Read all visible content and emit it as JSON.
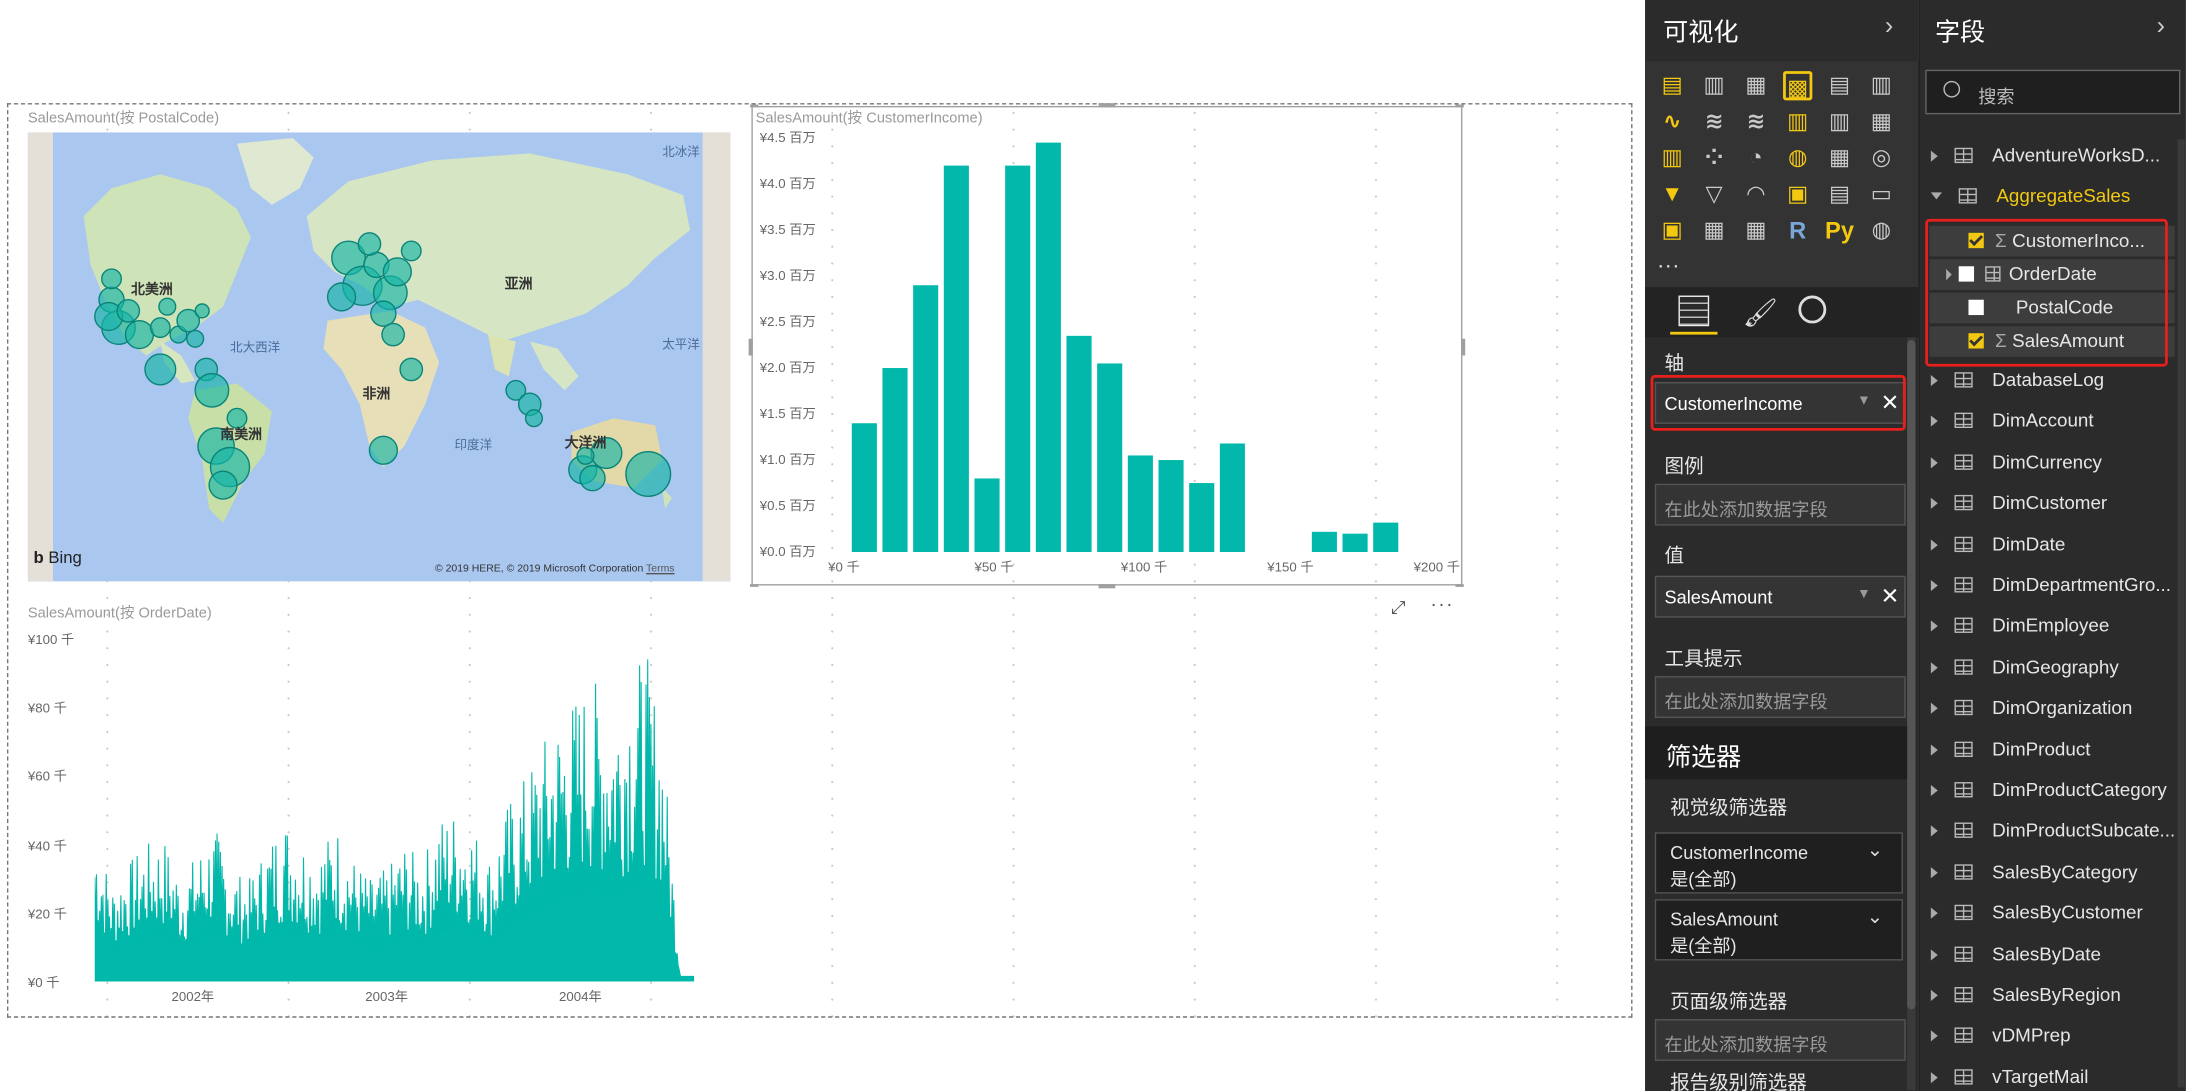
{
  "visuals": {
    "map": {
      "title": "SalesAmount(按 PostalCode)",
      "labels": {
        "north_america": "北美洲",
        "asia": "亚洲",
        "north_atlantic": "北大西洋",
        "africa": "非洲",
        "south_america": "南美洲",
        "indian_ocean": "印度洋",
        "oceania": "大洋洲",
        "pacific": "太平洋",
        "arctic": "北冰洋"
      },
      "bing": "Bing",
      "copyright": "© 2019 HERE, © 2019 Microsoft Corporation",
      "terms": "Terms"
    },
    "bar": {
      "title": "SalesAmount(按 CustomerIncome)",
      "yticks": [
        "¥4.5 百万",
        "¥4.0 百万",
        "¥3.5 百万",
        "¥3.0 百万",
        "¥2.5 百万",
        "¥2.0 百万",
        "¥1.5 百万",
        "¥1.0 百万",
        "¥0.5 百万",
        "¥0.0 百万"
      ],
      "xticks": [
        "¥0 千",
        "¥50 千",
        "¥100 千",
        "¥150 千",
        "¥200 千"
      ]
    },
    "line": {
      "title": "SalesAmount(按 OrderDate)",
      "yticks": [
        "¥100 千",
        "¥80 千",
        "¥60 千",
        "¥40 千",
        "¥20 千",
        "¥0 千"
      ],
      "xticks": [
        "2002年",
        "2003年",
        "2004年"
      ]
    }
  },
  "chart_data": [
    {
      "type": "bar",
      "title": "SalesAmount(按 CustomerIncome)",
      "x": [
        10,
        20,
        30,
        40,
        50,
        60,
        70,
        80,
        90,
        100,
        110,
        120,
        130,
        140,
        160,
        170,
        180
      ],
      "values": [
        1.4,
        2.0,
        2.9,
        4.2,
        0.8,
        4.2,
        4.45,
        2.35,
        2.05,
        1.05,
        1.0,
        0.75,
        1.18,
        0.0,
        0.22,
        0.2,
        0.32
      ],
      "unit": "百万",
      "color": "#01b8aa",
      "xlim": [
        0,
        200
      ],
      "ylim": [
        0,
        4.5
      ]
    },
    {
      "type": "area",
      "title": "SalesAmount(按 OrderDate)",
      "color": "#01b8aa",
      "x_range": [
        "2001-07",
        "2004-07"
      ],
      "ylim": [
        0,
        100
      ],
      "unit": "千",
      "monthly_peak_values": [
        45,
        28,
        35,
        40,
        42,
        30,
        38,
        45,
        32,
        30,
        40,
        48,
        42,
        38,
        46,
        36,
        30,
        33,
        40,
        35,
        48,
        50,
        45,
        36,
        52,
        60,
        70,
        78,
        84,
        88,
        80,
        90,
        96,
        72,
        3
      ]
    }
  ],
  "viz_pane": {
    "title": "可视化",
    "more": "...",
    "axis_label": "轴",
    "axis_field": "CustomerIncome",
    "legend_label": "图例",
    "legend_placeholder": "在此处添加数据字段",
    "values_label": "值",
    "values_field": "SalesAmount",
    "tooltip_label": "工具提示",
    "tooltip_placeholder": "在此处添加数据字段"
  },
  "filters": {
    "title": "筛选器",
    "visual_level": "视觉级筛选器",
    "items": [
      {
        "name": "CustomerIncome",
        "state": "是(全部)"
      },
      {
        "name": "SalesAmount",
        "state": "是(全部)"
      }
    ],
    "page_level": "页面级筛选器",
    "page_placeholder": "在此处添加数据字段",
    "report_level": "报告级别筛选器"
  },
  "fields_pane": {
    "title": "字段",
    "search_placeholder": "搜索",
    "tables_top": [
      "AdventureWorksD...",
      "AggregateSales"
    ],
    "aggregate_fields": [
      {
        "name": "CustomerInco...",
        "checked": true,
        "sigma": true
      },
      {
        "name": "OrderDate",
        "checked": false,
        "sigma": false
      },
      {
        "name": "PostalCode",
        "checked": false,
        "sigma": false
      },
      {
        "name": "SalesAmount",
        "checked": true,
        "sigma": true
      }
    ],
    "tables_rest": [
      "DatabaseLog",
      "DimAccount",
      "DimCurrency",
      "DimCustomer",
      "DimDate",
      "DimDepartmentGro...",
      "DimEmployee",
      "DimGeography",
      "DimOrganization",
      "DimProduct",
      "DimProductCategory",
      "DimProductSubcate...",
      "SalesByCategory",
      "SalesByCustomer",
      "SalesByDate",
      "SalesByRegion",
      "vDMPrep",
      "vTargetMail"
    ]
  }
}
